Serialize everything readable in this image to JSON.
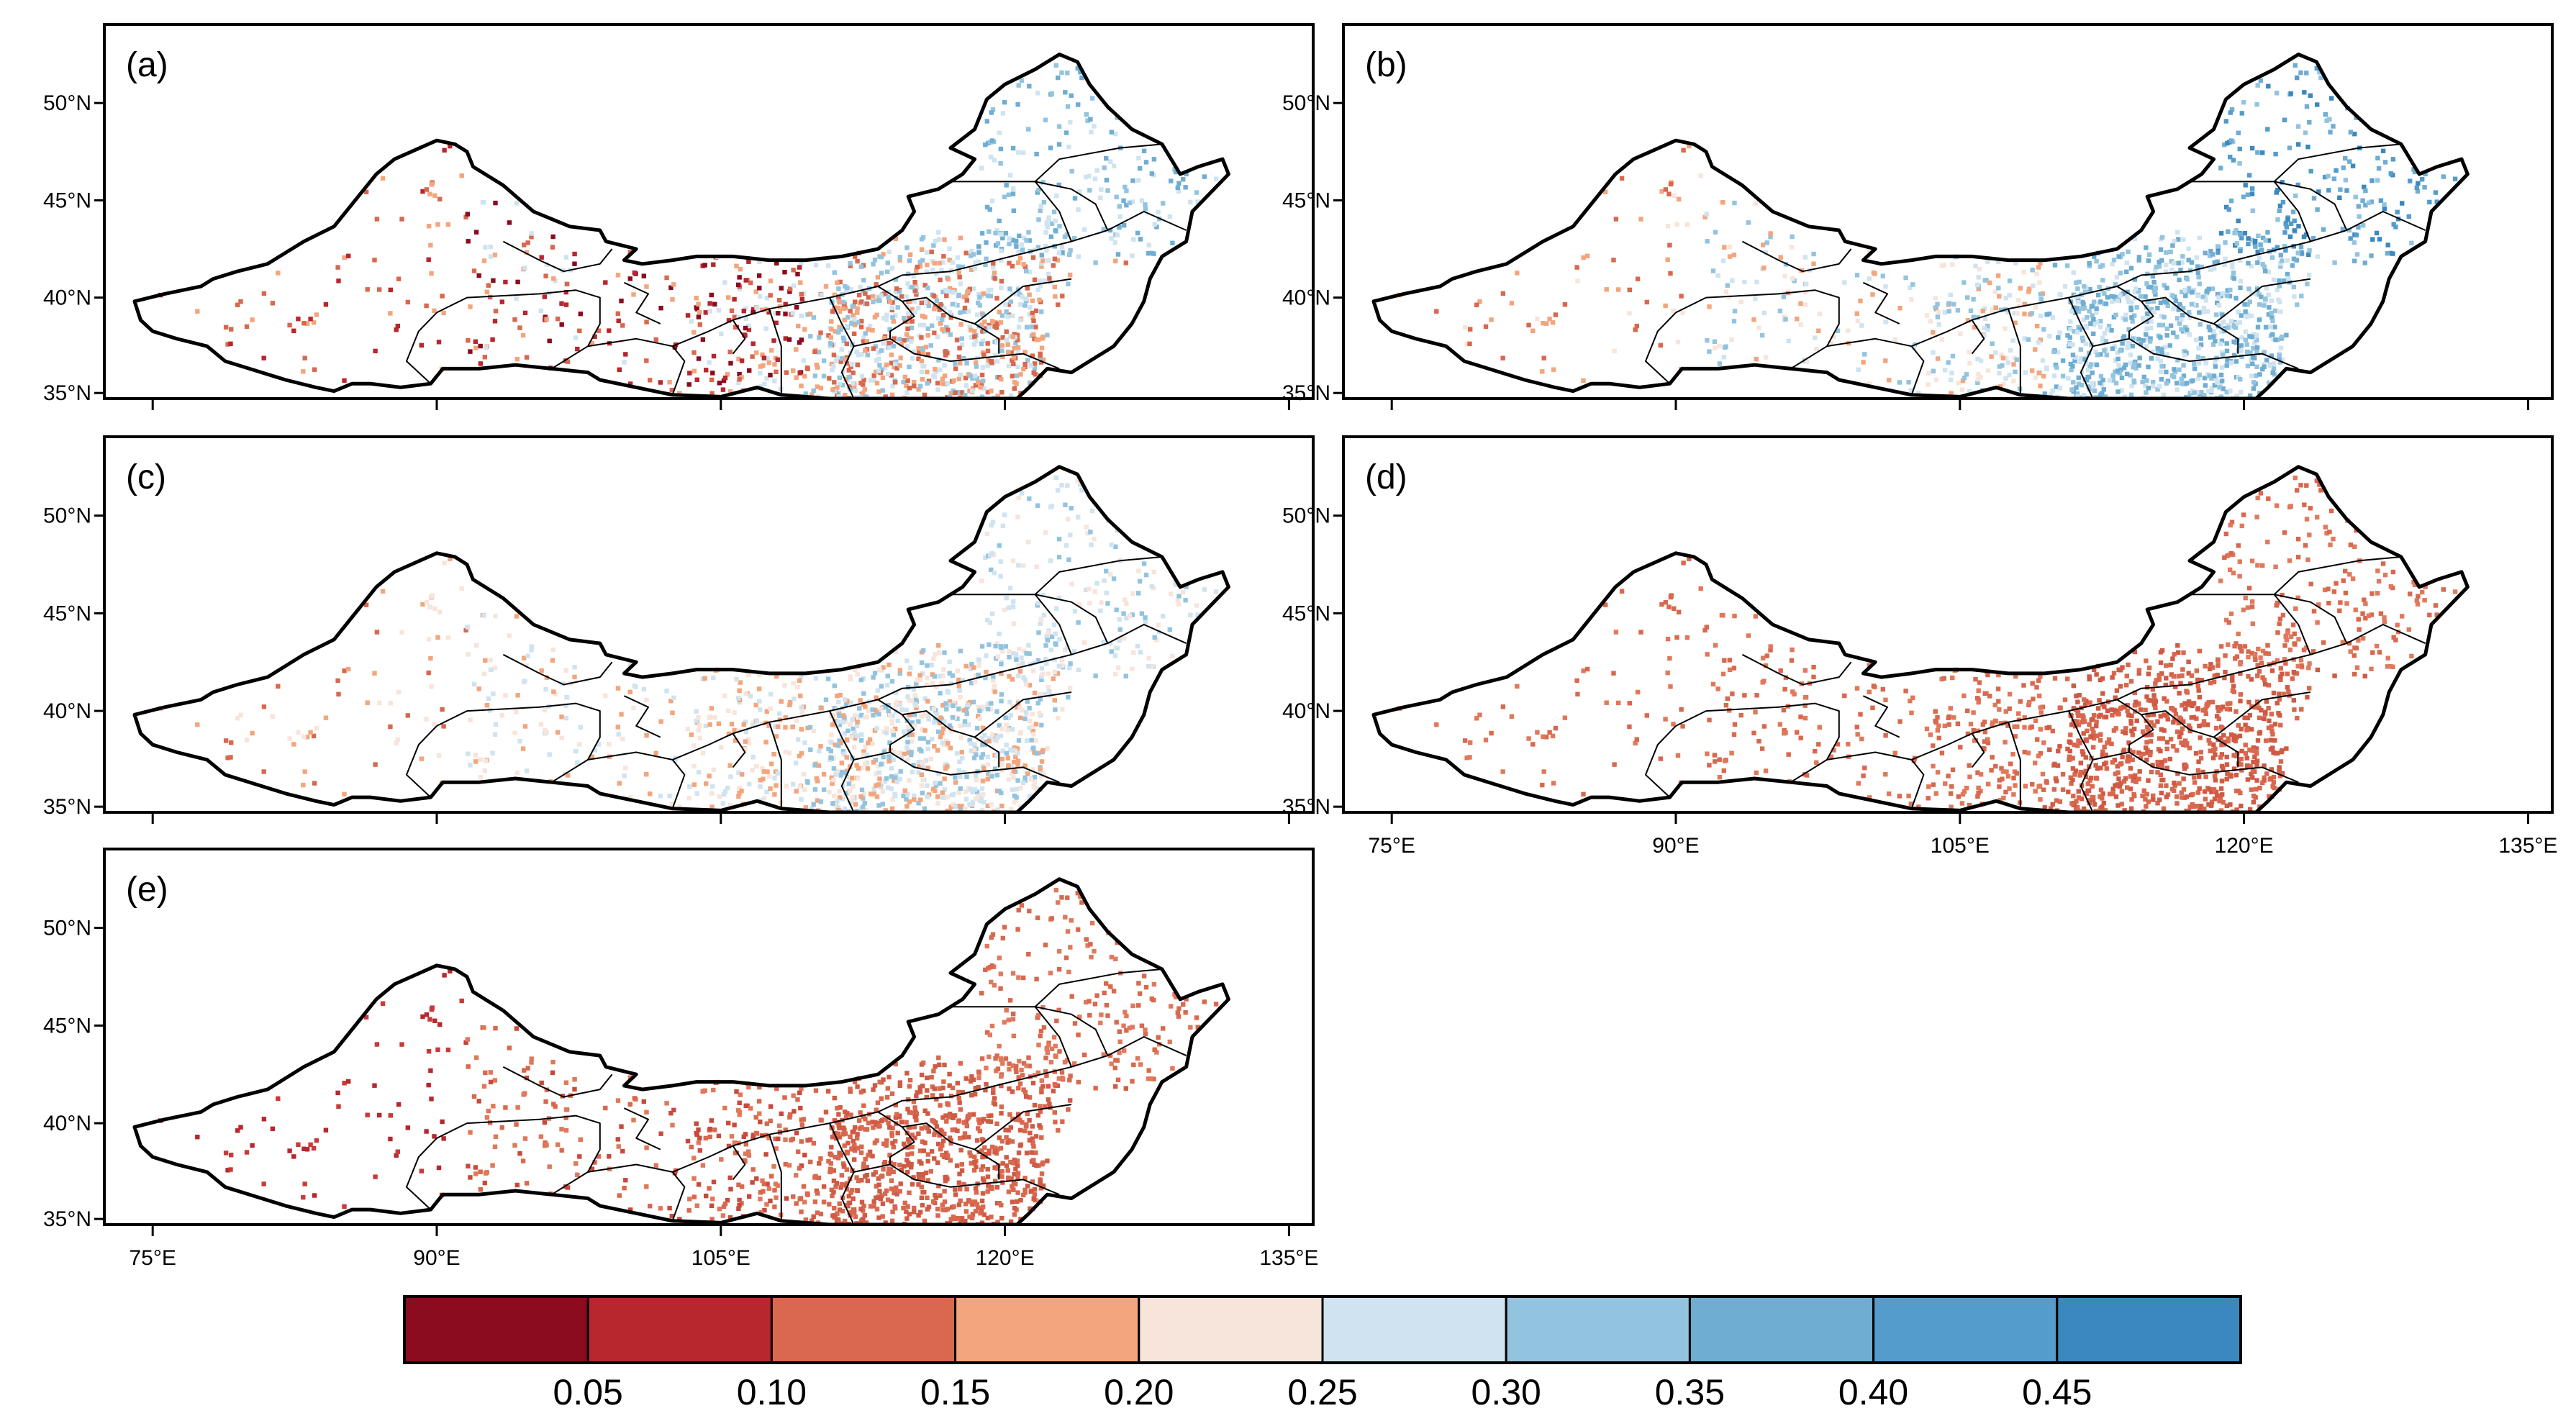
{
  "figure": {
    "panels": [
      {
        "label": "(a)",
        "key": "a",
        "palette": "mixed-red",
        "cluster_level": 3
      },
      {
        "label": "(b)",
        "key": "b",
        "palette": "mixed-blue",
        "cluster_level": 6
      },
      {
        "label": "(c)",
        "key": "c",
        "palette": "mixed-light",
        "cluster_level": 4
      },
      {
        "label": "(d)",
        "key": "d",
        "palette": "orange",
        "cluster_level": 2
      },
      {
        "label": "(e)",
        "key": "e",
        "palette": "orange-red",
        "cluster_level": 2
      }
    ],
    "lat_ticks": [
      "50°N",
      "45°N",
      "40°N",
      "35°N"
    ],
    "lon_ticks": [
      "75°E",
      "90°E",
      "105°E",
      "120°E",
      "135°E"
    ],
    "colorbar": {
      "colors": [
        "#8b0b1f",
        "#b8262e",
        "#d8684e",
        "#f3a57d",
        "#f7e4db",
        "#cfe3f0",
        "#93c4df",
        "#6fadd2",
        "#549ccb",
        "#3a88bd"
      ],
      "labels": [
        "0.05",
        "0.10",
        "0.15",
        "0.20",
        "0.25",
        "0.30",
        "0.35",
        "0.40",
        "0.45"
      ]
    },
    "palettes": {
      "mixed-red": {
        "west": [
          "#b8262e",
          "#d8684e",
          "#f3a57d"
        ],
        "central": [
          "#8b0b1f",
          "#b8262e",
          "#d8684e",
          "#f3a57d",
          "#cfe3f0"
        ],
        "east": [
          "#d8684e",
          "#f3a57d",
          "#cfe3f0",
          "#93c4df"
        ],
        "northeast": [
          "#93c4df",
          "#cfe3f0",
          "#6fadd2"
        ]
      },
      "mixed-blue": {
        "west": [
          "#f3a57d",
          "#d8684e",
          "#f7e4db"
        ],
        "central": [
          "#f7e4db",
          "#cfe3f0",
          "#93c4df",
          "#f3a57d"
        ],
        "east": [
          "#93c4df",
          "#6fadd2",
          "#cfe3f0"
        ],
        "northeast": [
          "#6fadd2",
          "#549ccb",
          "#3a88bd",
          "#93c4df"
        ]
      },
      "mixed-light": {
        "west": [
          "#f3a57d",
          "#d8684e",
          "#f7e4db"
        ],
        "central": [
          "#f7e4db",
          "#f3a57d",
          "#cfe3f0"
        ],
        "east": [
          "#f7e4db",
          "#cfe3f0",
          "#93c4df",
          "#f3a57d"
        ],
        "northeast": [
          "#cfe3f0",
          "#93c4df",
          "#f7e4db"
        ]
      },
      "orange": {
        "west": [
          "#d8684e",
          "#e0785a"
        ],
        "central": [
          "#d8684e",
          "#e0785a"
        ],
        "east": [
          "#d8684e",
          "#cf5b45"
        ],
        "northeast": [
          "#d8684e",
          "#e07a5e"
        ]
      },
      "orange-red": {
        "west": [
          "#b8262e",
          "#c83a3a"
        ],
        "central": [
          "#d8684e",
          "#e0785a",
          "#c94a3c"
        ],
        "east": [
          "#d8684e",
          "#cf5b45"
        ],
        "northeast": [
          "#d8684e",
          "#e07a5e"
        ]
      }
    }
  }
}
